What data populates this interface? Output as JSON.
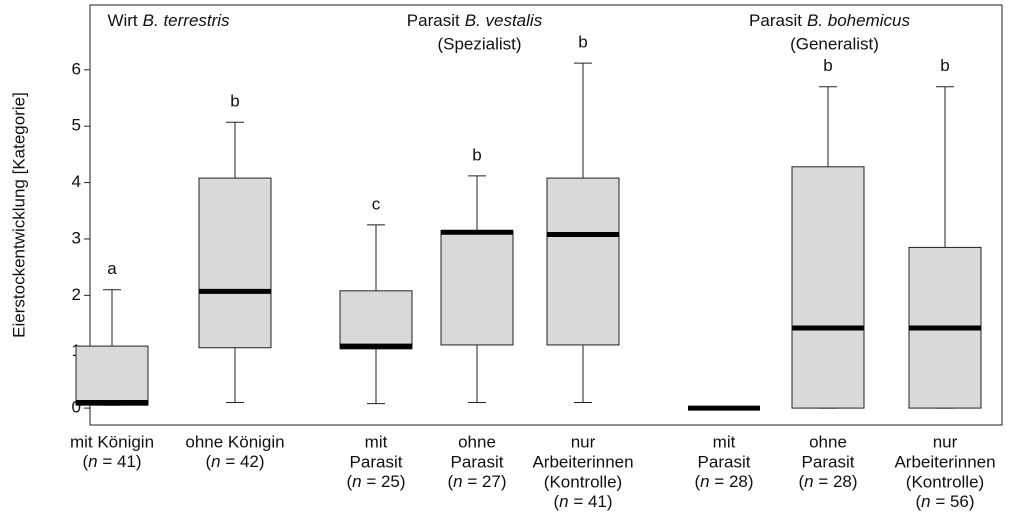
{
  "chart_data": {
    "type": "box",
    "y_label": "Eierstockentwicklung [Kategorie]",
    "ylim": [
      -0.3,
      7.15
    ],
    "yticks": [
      0,
      1,
      2,
      3,
      4,
      5,
      6
    ],
    "box_color": "#d9d9d9",
    "groups": [
      {
        "prefix": "Wirt",
        "species": "B. terrestris",
        "categories": [
          0,
          1
        ]
      },
      {
        "prefix": "Parasit",
        "species": "B. vestalis",
        "note": "(Spezialist)",
        "categories": [
          2,
          3,
          4
        ]
      },
      {
        "prefix": "Parasit",
        "species": "B. bohemicus",
        "note": "(Generalist)",
        "categories": [
          5,
          6,
          7
        ]
      }
    ],
    "categories": [
      [
        "mit Königin",
        "(n = 41)"
      ],
      [
        "ohne Königin",
        "(n = 42)"
      ],
      [
        "mit",
        "Parasit",
        "(n = 25)"
      ],
      [
        "ohne",
        "Parasit",
        "(n = 27)"
      ],
      [
        "nur",
        "Arbeiterinnen",
        "(Kontrolle)",
        "(n = 41)"
      ],
      [
        "mit",
        "Parasit",
        "(n = 28)"
      ],
      [
        "ohne",
        "Parasit",
        "(n = 28)"
      ],
      [
        "nur",
        "Arbeiterinnen",
        "(Kontrolle)",
        "(n = 56)"
      ]
    ],
    "boxes": [
      {
        "min": 0.05,
        "q1": 0.05,
        "median": 0.1,
        "q3": 1.1,
        "max": 2.1
      },
      {
        "min": 0.1,
        "q1": 1.07,
        "median": 2.07,
        "q3": 4.08,
        "max": 5.07
      },
      {
        "min": 0.08,
        "q1": 1.05,
        "median": 1.1,
        "q3": 2.08,
        "max": 3.25
      },
      {
        "min": 0.1,
        "q1": 1.12,
        "median": 3.12,
        "q3": 3.15,
        "max": 4.12
      },
      {
        "min": 0.1,
        "q1": 1.12,
        "median": 3.08,
        "q3": 4.08,
        "max": 6.12
      },
      {
        "min": 0,
        "q1": 0,
        "median": 0,
        "q3": 0,
        "max": 0
      },
      {
        "min": 0,
        "q1": 0,
        "median": 1.42,
        "q3": 4.28,
        "max": 5.7
      },
      {
        "min": 0,
        "q1": 0,
        "median": 1.42,
        "q3": 2.85,
        "max": 5.7
      }
    ],
    "letters": [
      "a",
      "b",
      "c",
      "b",
      "b",
      null,
      "b",
      "b"
    ]
  }
}
